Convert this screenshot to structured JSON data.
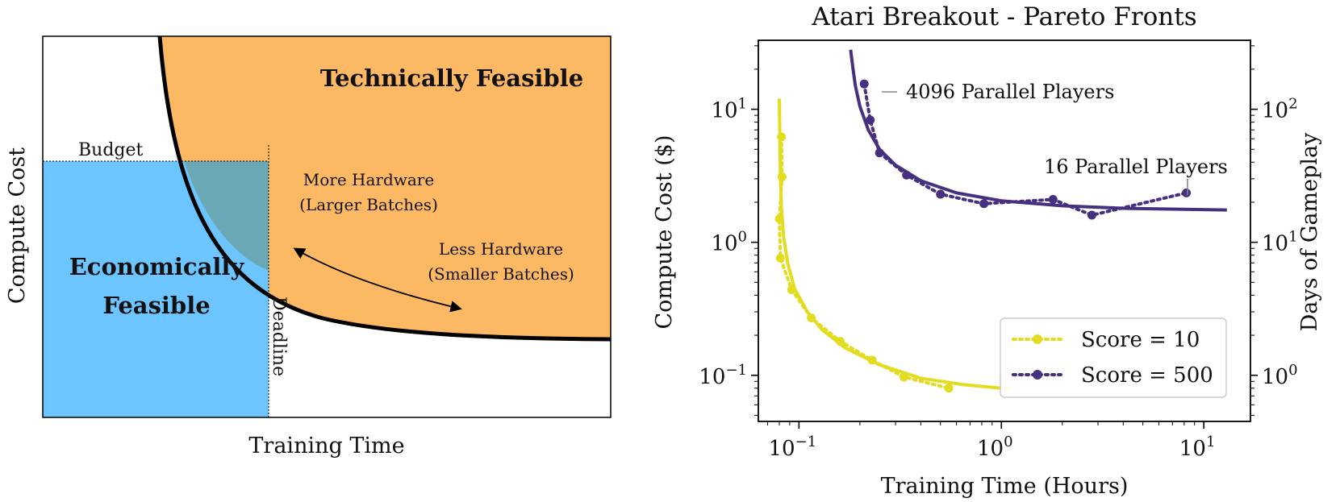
{
  "left_panel": {
    "regions": {
      "technical": "Technically Feasible",
      "economic_line1": "Economically",
      "economic_line2": "Feasible"
    },
    "budget_label": "Budget",
    "deadline_label": "Deadline",
    "more_hw_line1": "More Hardware",
    "more_hw_line2": "(Larger Batches)",
    "less_hw_line1": "Less Hardware",
    "less_hw_line2": "(Smaller Batches)",
    "xlabel": "Training Time",
    "ylabel": "Compute Cost",
    "colors": {
      "technical": "#FDB863",
      "economic": "#6CC5FF",
      "overlap": "#6AA8B6",
      "curve": "#000000"
    }
  },
  "chart_data": [
    {
      "type": "area",
      "title": "",
      "xlabel": "Training Time",
      "ylabel": "Compute Cost",
      "description_of_curve": "hyperbolic frontier (conceptual, unitless)",
      "annotations": [
        "Technically Feasible",
        "Economically Feasible",
        "Budget",
        "Deadline",
        "More Hardware (Larger Batches)",
        "Less Hardware (Smaller Batches)"
      ]
    },
    {
      "type": "line",
      "title": "Atari Breakout - Pareto Fronts",
      "xlabel": "Training Time (Hours)",
      "ylabel": "Compute Cost ($)",
      "ylabel_right": "Days of Gameplay",
      "xscale": "log",
      "yscale": "log",
      "xlim": [
        0.063,
        17
      ],
      "ylim": [
        0.045,
        33
      ],
      "right_ylim": [
        0.45,
        330
      ],
      "x_ticks": [
        {
          "value": 0.1,
          "base": "10",
          "exp": "−1"
        },
        {
          "value": 1,
          "base": "10",
          "exp": "0"
        },
        {
          "value": 10,
          "base": "10",
          "exp": "1"
        }
      ],
      "y_ticks": [
        {
          "value": 0.1,
          "base": "10",
          "exp": "−1"
        },
        {
          "value": 1,
          "base": "10",
          "exp": "0"
        },
        {
          "value": 10,
          "base": "10",
          "exp": "1"
        }
      ],
      "right_ticks": [
        {
          "value": 1,
          "base": "10",
          "exp": "0"
        },
        {
          "value": 10,
          "base": "10",
          "exp": "1"
        },
        {
          "value": 100,
          "base": "10",
          "exp": "2"
        }
      ],
      "legend_position": "lower-right",
      "series": [
        {
          "name": "Score = 10",
          "color": "#E3DD22",
          "points": [
            [
              0.082,
              6.2
            ],
            [
              0.0825,
              3.1
            ],
            [
              0.08,
              1.5
            ],
            [
              0.081,
              0.76
            ],
            [
              0.092,
              0.44
            ],
            [
              0.115,
              0.27
            ],
            [
              0.16,
              0.18
            ],
            [
              0.23,
              0.13
            ],
            [
              0.33,
              0.097
            ],
            [
              0.55,
              0.08
            ]
          ],
          "fit": [
            [
              0.08,
              12.0
            ],
            [
              0.0805,
              6.0
            ],
            [
              0.081,
              3.0
            ],
            [
              0.082,
              1.8
            ],
            [
              0.084,
              1.1
            ],
            [
              0.088,
              0.7
            ],
            [
              0.095,
              0.45
            ],
            [
              0.11,
              0.3
            ],
            [
              0.13,
              0.22
            ],
            [
              0.17,
              0.16
            ],
            [
              0.25,
              0.12
            ],
            [
              0.4,
              0.095
            ],
            [
              0.65,
              0.085
            ],
            [
              1.1,
              0.079
            ]
          ]
        },
        {
          "name": "Score = 500",
          "color": "#46307F",
          "points": [
            [
              0.21,
              15.5
            ],
            [
              0.225,
              8.3
            ],
            [
              0.25,
              4.7
            ],
            [
              0.34,
              3.2
            ],
            [
              0.5,
              2.3
            ],
            [
              0.82,
              1.95
            ],
            [
              1.8,
              2.1
            ],
            [
              2.8,
              1.6
            ],
            [
              8.2,
              2.35
            ]
          ],
          "fit": [
            [
              0.18,
              28.0
            ],
            [
              0.185,
              20.0
            ],
            [
              0.19,
              15.0
            ],
            [
              0.2,
              10.5
            ],
            [
              0.22,
              7.0
            ],
            [
              0.25,
              5.0
            ],
            [
              0.3,
              3.8
            ],
            [
              0.4,
              2.9
            ],
            [
              0.6,
              2.35
            ],
            [
              1.0,
              2.05
            ],
            [
              2.0,
              1.88
            ],
            [
              4.0,
              1.8
            ],
            [
              8.0,
              1.77
            ],
            [
              13.0,
              1.75
            ]
          ]
        }
      ],
      "annotations": [
        {
          "text": "4096 Parallel Players",
          "x": 0.21,
          "y": 15.5
        },
        {
          "text": "16 Parallel Players",
          "x": 8.2,
          "y": 2.35
        }
      ]
    }
  ]
}
